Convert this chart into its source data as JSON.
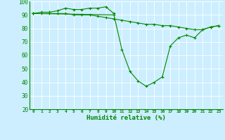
{
  "xlabel": "Humidité relative (%)",
  "background_color": "#cceeff",
  "grid_color": "#ffffff",
  "line_color": "#008800",
  "xlim": [
    -0.5,
    23.5
  ],
  "ylim": [
    20,
    100
  ],
  "yticks": [
    20,
    30,
    40,
    50,
    60,
    70,
    80,
    90,
    100
  ],
  "xticks": [
    0,
    1,
    2,
    3,
    4,
    5,
    6,
    7,
    8,
    9,
    10,
    11,
    12,
    13,
    14,
    15,
    16,
    17,
    18,
    19,
    20,
    21,
    22,
    23
  ],
  "series1_x": [
    0,
    1,
    2,
    3,
    4,
    5,
    6,
    7,
    8,
    9,
    10
  ],
  "series1_y": [
    91,
    92,
    92,
    93,
    95,
    94,
    94,
    95,
    95,
    96,
    91
  ],
  "series2_x": [
    0,
    1,
    2,
    3,
    4,
    5,
    6,
    7,
    8,
    9,
    10,
    11,
    12,
    13,
    14,
    15,
    16,
    17,
    18,
    19,
    20,
    21,
    22,
    23
  ],
  "series2_y": [
    91,
    91,
    91,
    91,
    91,
    90,
    90,
    90,
    89,
    88,
    87,
    86,
    85,
    84,
    83,
    83,
    82,
    82,
    81,
    80,
    79,
    79,
    81,
    82
  ],
  "series3_x": [
    0,
    10,
    11,
    12,
    13,
    14,
    15,
    16,
    17,
    18,
    19,
    20,
    21,
    22,
    23
  ],
  "series3_y": [
    91,
    90,
    64,
    48,
    41,
    37,
    40,
    44,
    67,
    73,
    75,
    73,
    79,
    81,
    82
  ]
}
